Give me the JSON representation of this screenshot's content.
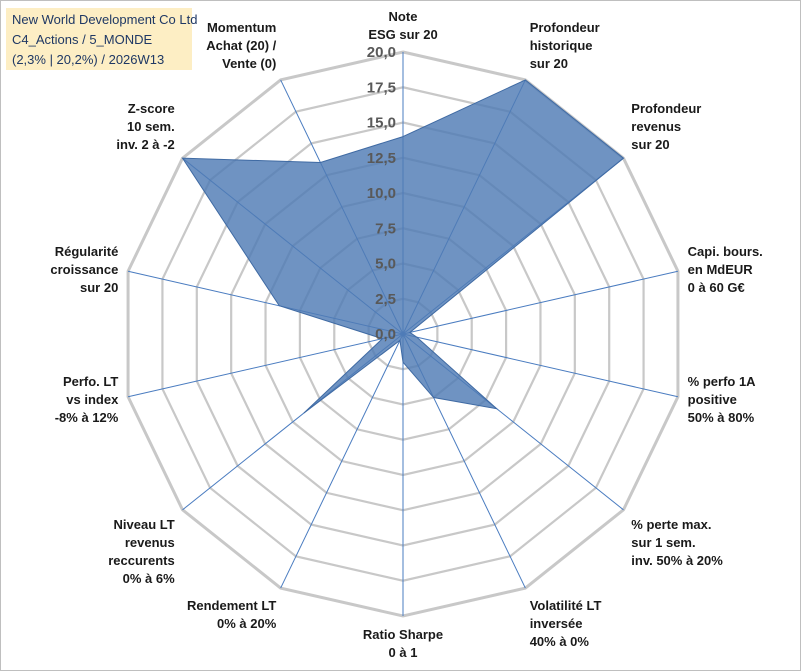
{
  "title_box": {
    "line1": "New World Development Co Ltd",
    "line2": "C4_Actions / 5_MONDE",
    "line3": "(2,3% | 20,2%) / 2026W13"
  },
  "chart_data": {
    "type": "radar",
    "title": "New World Development Co Ltd",
    "rmin": 0,
    "rmax": 20,
    "tick_step": 2.5,
    "tick_labels": [
      "0,0",
      "2,5",
      "5,0",
      "7,5",
      "10,0",
      "12,5",
      "15,0",
      "17,5",
      "20,0"
    ],
    "categories": [
      [
        "Note",
        "ESG sur 20"
      ],
      [
        "Profondeur",
        "historique",
        "sur 20"
      ],
      [
        "Profondeur",
        "revenus",
        "sur 20"
      ],
      [
        "Capi. bours.",
        "en MdEUR",
        "0 à 60 G€"
      ],
      [
        "% perfo 1A",
        "positive",
        "50% à 80%"
      ],
      [
        "% perte max.",
        "sur 1 sem.",
        "inv. 50% à 20%"
      ],
      [
        "Volatilité LT",
        "inversée",
        "40% à 0%"
      ],
      [
        "Ratio Sharpe",
        "0 à 1"
      ],
      [
        "Rendement LT",
        "0% à 20%"
      ],
      [
        "Niveau LT",
        "revenus",
        "reccurents",
        "0% à 6%"
      ],
      [
        "Perfo. LT",
        "vs index",
        "-8% à 12%"
      ],
      [
        "Régularité",
        "croissance",
        "sur 20"
      ],
      [
        "Z-score",
        "10 sem.",
        "inv. 2 à -2"
      ],
      [
        "Momentum",
        "Achat (20) /",
        "Vente (0)"
      ]
    ],
    "series": [
      {
        "name": "New World Development Co Ltd",
        "color": "#4f7bb5",
        "values": [
          14,
          20,
          20,
          0.5,
          1.0,
          8.5,
          5.0,
          2.0,
          0.5,
          9.0,
          1.5,
          9.0,
          20,
          13.5
        ]
      }
    ],
    "grid": true,
    "grid_color": "#c8c8c8",
    "spoke_color": "#4a7cc0"
  }
}
